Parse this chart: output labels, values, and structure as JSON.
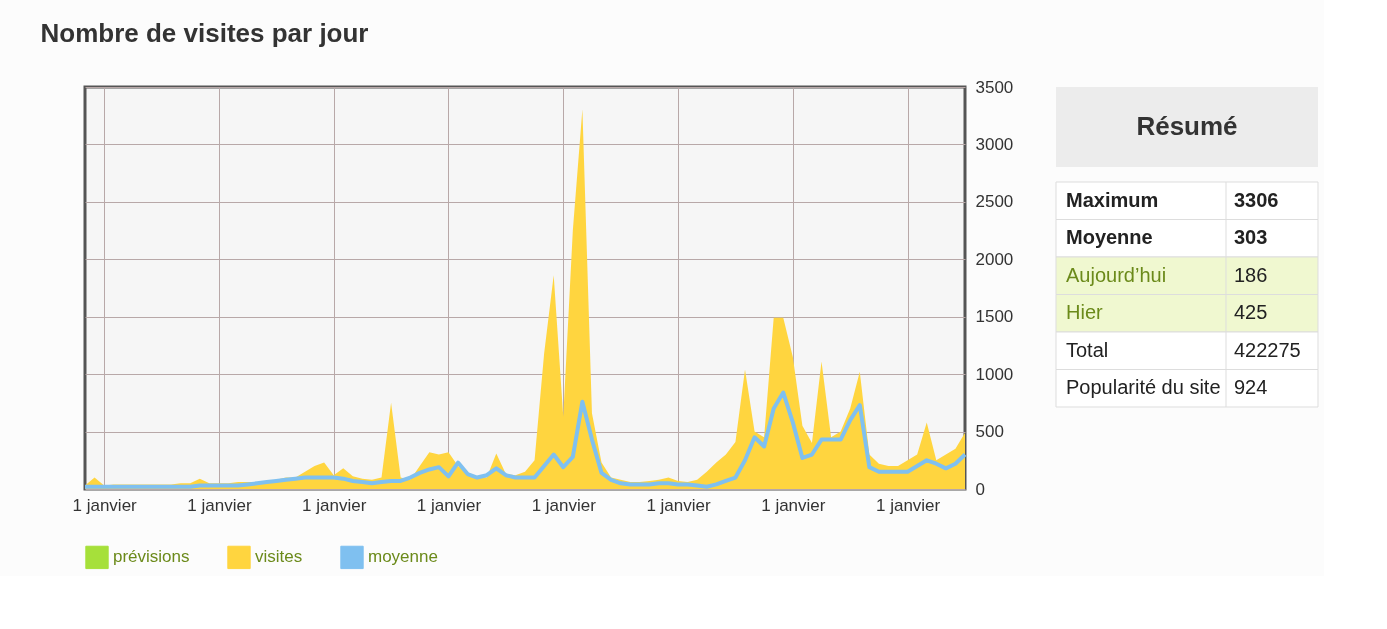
{
  "chart_data": {
    "type": "area",
    "title": "Nombre de visites par jour",
    "categories": [
      null,
      null,
      "1 janvier",
      null,
      null,
      null,
      null,
      null,
      null,
      null,
      null,
      null,
      null,
      null,
      "1 janvier",
      null,
      null,
      null,
      null,
      null,
      null,
      null,
      null,
      null,
      null,
      null,
      "1 janvier",
      null,
      null,
      null,
      null,
      null,
      null,
      null,
      null,
      null,
      null,
      null,
      "1 janvier",
      null,
      null,
      null,
      null,
      null,
      null,
      null,
      null,
      null,
      null,
      null,
      "1 janvier",
      null,
      null,
      null,
      null,
      null,
      null,
      null,
      null,
      null,
      null,
      null,
      "1 janvier",
      null,
      null,
      null,
      null,
      null,
      null,
      null,
      null,
      null,
      null,
      null,
      "1 janvier",
      null,
      null,
      null,
      null,
      null,
      null,
      null,
      null,
      null,
      null,
      null,
      "1 janvier",
      null,
      null,
      null,
      null,
      null,
      null
    ],
    "ylim": [
      0,
      3500
    ],
    "yticks": [
      0,
      500,
      1000,
      1500,
      2000,
      2500,
      3000,
      3500
    ],
    "grid": true,
    "legend": "bottom left",
    "series": [
      {
        "name": "prévisions",
        "color": "#a6e03a",
        "values": [
          null,
          null,
          null,
          null,
          null,
          null,
          null,
          null,
          null,
          null,
          null,
          null,
          null,
          null,
          null,
          null,
          null,
          null,
          null,
          null,
          null,
          null,
          null,
          null,
          null,
          null,
          null,
          null,
          null,
          null,
          null,
          null,
          null,
          null,
          null,
          null,
          null,
          null,
          null,
          null,
          null,
          null,
          null,
          null,
          null,
          null,
          null,
          null,
          null,
          null,
          null,
          null,
          null,
          null,
          null,
          null,
          null,
          null,
          null,
          null,
          null,
          null,
          null,
          null,
          null,
          null,
          null,
          null,
          null,
          null,
          null,
          null,
          null,
          null,
          null,
          null,
          null,
          null,
          null,
          null,
          null,
          null,
          null,
          null,
          null,
          null,
          null,
          null,
          null,
          null,
          null,
          null,
          null
        ]
      },
      {
        "name": "visites",
        "color": "#ffd53f",
        "values": [
          30,
          100,
          30,
          40,
          40,
          40,
          40,
          40,
          40,
          40,
          50,
          50,
          90,
          50,
          50,
          50,
          60,
          60,
          60,
          70,
          80,
          100,
          100,
          150,
          200,
          230,
          120,
          180,
          110,
          90,
          80,
          100,
          750,
          100,
          80,
          200,
          320,
          300,
          320,
          200,
          140,
          110,
          100,
          310,
          130,
          120,
          150,
          250,
          1180,
          1860,
          630,
          2250,
          3306,
          660,
          230,
          100,
          80,
          60,
          60,
          70,
          80,
          100,
          70,
          60,
          80,
          150,
          230,
          300,
          410,
          1040,
          500,
          450,
          1490,
          1490,
          1150,
          550,
          400,
          1110,
          450,
          500,
          700,
          1020,
          300,
          220,
          200,
          200,
          250,
          300,
          580,
          250,
          300,
          350,
          490
        ]
      },
      {
        "name": "moyenne",
        "color": "#7fc0f0",
        "type": "line",
        "values": [
          20,
          20,
          20,
          20,
          20,
          20,
          20,
          20,
          20,
          20,
          20,
          20,
          30,
          30,
          30,
          30,
          30,
          40,
          50,
          60,
          70,
          80,
          90,
          100,
          100,
          100,
          100,
          90,
          70,
          60,
          50,
          60,
          70,
          70,
          100,
          140,
          170,
          190,
          110,
          230,
          130,
          100,
          120,
          180,
          120,
          100,
          100,
          100,
          200,
          300,
          190,
          280,
          760,
          430,
          140,
          80,
          50,
          40,
          40,
          40,
          50,
          50,
          40,
          40,
          30,
          20,
          40,
          70,
          100,
          250,
          450,
          370,
          700,
          840,
          580,
          270,
          300,
          430,
          430,
          430,
          600,
          730,
          190,
          150,
          150,
          150,
          150,
          200,
          250,
          220,
          180,
          220,
          300
        ]
      }
    ],
    "annotations": [
      "Résumé",
      "Maximum",
      "3306",
      "Moyenne",
      "303",
      "Aujourd’hui",
      "186",
      "Hier",
      "425",
      "Total",
      "422275",
      "Popularité du site",
      "924"
    ]
  }
}
